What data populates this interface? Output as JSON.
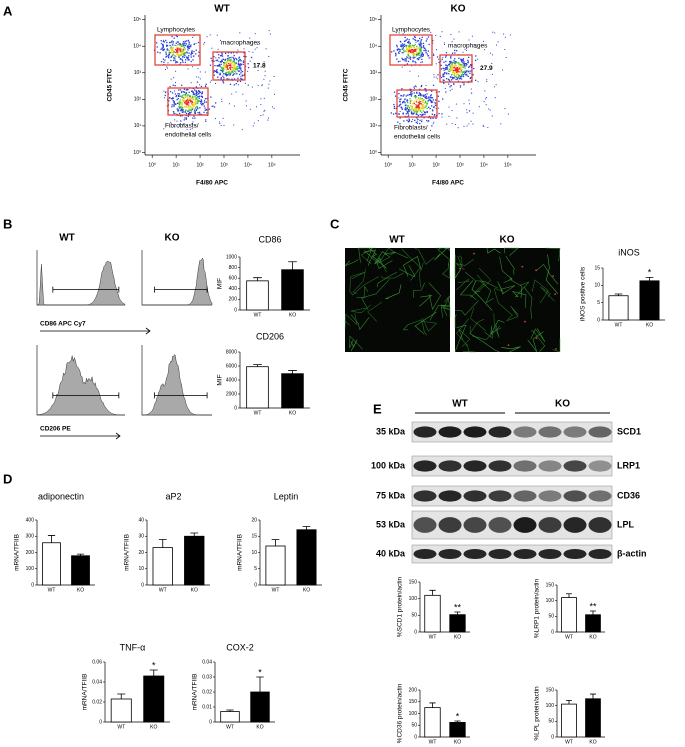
{
  "panel_labels": [
    "A",
    "B",
    "C",
    "D",
    "E"
  ],
  "flow_plots": [
    {
      "title": "WT",
      "xlabel": "F4/80 APC",
      "ylabel": "CD45 FITC",
      "log": true,
      "xlim": [
        0.5,
        1500000
      ],
      "ylim": [
        0.8,
        150000
      ],
      "xticks": [
        {
          "value": 1,
          "label": "10⁰"
        },
        {
          "value": 10,
          "label": "10¹"
        },
        {
          "value": 100,
          "label": "10²"
        },
        {
          "value": 1000,
          "label": "10³"
        },
        {
          "value": 10000,
          "label": "10⁴"
        },
        {
          "value": 100000,
          "label": "10⁵"
        }
      ],
      "yticks": [
        {
          "value": 1,
          "label": "10⁰"
        },
        {
          "value": 10,
          "label": "10¹"
        },
        {
          "value": 100,
          "label": "10²"
        },
        {
          "value": 1000,
          "label": "10³"
        },
        {
          "value": 10000,
          "label": "10⁴"
        },
        {
          "value": 100000,
          "label": "10⁵"
        }
      ],
      "gates": [
        {
          "label": [
            "Lymphocytes"
          ]
        },
        {
          "label": [
            "macrophages"
          ],
          "value": 17.8
        },
        {
          "label": [
            "Fibroblasts/",
            "endothelial cells"
          ]
        }
      ]
    },
    {
      "title": "KO",
      "xlabel": "F4/80 APC",
      "ylabel": "CD45 FITC",
      "log": true,
      "xlim": [
        0.5,
        1500000
      ],
      "ylim": [
        0.8,
        150000
      ],
      "xticks": [
        {
          "value": 1,
          "label": "10⁰"
        },
        {
          "value": 10,
          "label": "10¹"
        },
        {
          "value": 100,
          "label": "10²"
        },
        {
          "value": 1000,
          "label": "10³"
        },
        {
          "value": 10000,
          "label": "10⁴"
        },
        {
          "value": 100000,
          "label": "10⁵"
        }
      ],
      "yticks": [
        {
          "value": 1,
          "label": "10⁰"
        },
        {
          "value": 10,
          "label": "10¹"
        },
        {
          "value": 100,
          "label": "10²"
        },
        {
          "value": 1000,
          "label": "10³"
        },
        {
          "value": 10000,
          "label": "10⁴"
        },
        {
          "value": 100000,
          "label": "10⁵"
        }
      ],
      "gates": [
        {
          "label": [
            "Lymphocytes"
          ]
        },
        {
          "label": [
            "macrophages"
          ],
          "value": 27.9
        },
        {
          "label": [
            "Fibroblasts/",
            "endothelial cells"
          ]
        }
      ]
    }
  ],
  "histograms": {
    "titles": [
      "WT",
      "KO"
    ],
    "xlabels": [
      "CD86 APC Cy7",
      "CD206 PE"
    ]
  },
  "micrographs": {
    "titles": [
      "WT",
      "KO"
    ]
  },
  "western": {
    "groups": [
      "WT",
      "KO"
    ],
    "rows": [
      {
        "size": "35 kDa",
        "protein": "SCD1"
      },
      {
        "size": "100 kDa",
        "protein": "LRP1"
      },
      {
        "size": "75 kDa",
        "protein": "CD36"
      },
      {
        "size": "53 kDa",
        "protein": "LPL"
      },
      {
        "size": "40 kDa",
        "protein": "β-actin"
      }
    ]
  },
  "chart_data": [
    {
      "type": "bar",
      "title": "CD86",
      "ylabel": "MIF",
      "categories": [
        "WT",
        "KO"
      ],
      "values": [
        550,
        760
      ],
      "errors": [
        60,
        150
      ],
      "colors": [
        "#ffffff",
        "#000000"
      ],
      "ylim": [
        0,
        1000
      ],
      "yticks": [
        0,
        200,
        400,
        600,
        800,
        1000
      ]
    },
    {
      "type": "bar",
      "title": "CD206",
      "ylabel": "MIF",
      "categories": [
        "WT",
        "KO"
      ],
      "values": [
        5900,
        4900
      ],
      "errors": [
        300,
        450
      ],
      "colors": [
        "#ffffff",
        "#000000"
      ],
      "ylim": [
        0,
        8000
      ],
      "yticks": [
        0,
        2000,
        4000,
        6000,
        8000
      ]
    },
    {
      "type": "bar",
      "title": "iNOS",
      "ylabel": "iNOS positive cells",
      "categories": [
        "WT",
        "KO"
      ],
      "values": [
        7,
        11.3
      ],
      "errors": [
        0.5,
        1
      ],
      "colors": [
        "#ffffff",
        "#000000"
      ],
      "ylim": [
        0,
        15
      ],
      "yticks": [
        0,
        5,
        10,
        15
      ],
      "annotation": "*"
    },
    {
      "type": "bar",
      "title": "adiponectin",
      "ylabel": "mRNA/TFIIB",
      "categories": [
        "WT",
        "KO"
      ],
      "values": [
        260,
        180
      ],
      "errors": [
        45,
        10
      ],
      "colors": [
        "#ffffff",
        "#000000"
      ],
      "ylim": [
        0,
        400
      ],
      "yticks": [
        0,
        100,
        200,
        300,
        400
      ]
    },
    {
      "type": "bar",
      "title": "aP2",
      "ylabel": "mRNA/TFIIB",
      "categories": [
        "WT",
        "KO"
      ],
      "values": [
        23,
        30
      ],
      "errors": [
        5,
        2
      ],
      "colors": [
        "#ffffff",
        "#000000"
      ],
      "ylim": [
        0,
        40
      ],
      "yticks": [
        0,
        10,
        20,
        30,
        40
      ]
    },
    {
      "type": "bar",
      "title": "Leptin",
      "ylabel": "mRNA/TFIIB",
      "categories": [
        "WT",
        "KO"
      ],
      "values": [
        12,
        17
      ],
      "errors": [
        2,
        1
      ],
      "colors": [
        "#ffffff",
        "#000000"
      ],
      "ylim": [
        0,
        20
      ],
      "yticks": [
        0,
        5,
        10,
        15,
        20
      ]
    },
    {
      "type": "bar",
      "title": "TNF-α",
      "ylabel": "mRNA/TFIIB",
      "categories": [
        "WT",
        "KO"
      ],
      "values": [
        0.023,
        0.046
      ],
      "errors": [
        0.005,
        0.006
      ],
      "colors": [
        "#ffffff",
        "#000000"
      ],
      "ylim": [
        0,
        0.06
      ],
      "yticks": [
        0,
        0.02,
        0.04,
        0.06
      ],
      "annotation": "*"
    },
    {
      "type": "bar",
      "title": "COX-2",
      "ylabel": "mRNA/TFIIB",
      "categories": [
        "WT",
        "KO"
      ],
      "values": [
        0.007,
        0.02
      ],
      "errors": [
        0.001,
        0.01
      ],
      "colors": [
        "#ffffff",
        "#000000"
      ],
      "ylim": [
        0,
        0.04
      ],
      "yticks": [
        0,
        0.01,
        0.02,
        0.03,
        0.04
      ],
      "annotation": "*"
    },
    {
      "type": "bar",
      "ylabel": "%SCD1 protein/actin",
      "categories": [
        "WT",
        "KO"
      ],
      "values": [
        110,
        52
      ],
      "errors": [
        15,
        8
      ],
      "colors": [
        "#ffffff",
        "#000000"
      ],
      "ylim": [
        0,
        150
      ],
      "yticks": [
        0,
        50,
        100,
        150
      ],
      "annotation": "**"
    },
    {
      "type": "bar",
      "ylabel": "%LRP1 protein/actin",
      "categories": [
        "WT",
        "KO"
      ],
      "values": [
        110,
        55
      ],
      "errors": [
        12,
        12
      ],
      "colors": [
        "#ffffff",
        "#000000"
      ],
      "ylim": [
        0,
        150
      ],
      "yticks": [
        0,
        50,
        100,
        150
      ],
      "annotation": "**"
    },
    {
      "type": "bar",
      "ylabel": "%CD36 protein/actin",
      "categories": [
        "WT",
        "KO"
      ],
      "values": [
        125,
        62
      ],
      "errors": [
        20,
        6
      ],
      "colors": [
        "#ffffff",
        "#000000"
      ],
      "ylim": [
        0,
        200
      ],
      "yticks": [
        0,
        50,
        100,
        150,
        200
      ],
      "annotation": "*"
    },
    {
      "type": "bar",
      "ylabel": "%LPL protein/actin",
      "categories": [
        "WT",
        "KO"
      ],
      "values": [
        105,
        122
      ],
      "errors": [
        12,
        15
      ],
      "colors": [
        "#ffffff",
        "#000000"
      ],
      "ylim": [
        0,
        150
      ],
      "yticks": [
        0,
        50,
        100,
        150
      ]
    }
  ]
}
